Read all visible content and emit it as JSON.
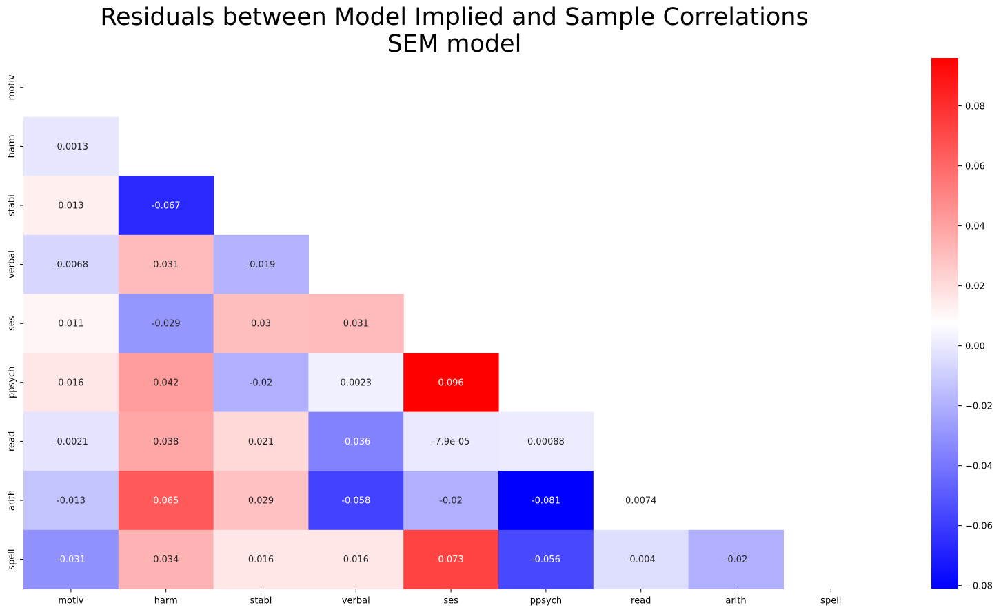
{
  "chart_data": {
    "type": "heatmap",
    "title": [
      "Residuals between Model Implied and Sample Correlations",
      "SEM model"
    ],
    "rows": [
      "motiv",
      "harm",
      "stabi",
      "verbal",
      "ses",
      "ppsych",
      "read",
      "arith",
      "spell"
    ],
    "columns": [
      "motiv",
      "harm",
      "stabi",
      "verbal",
      "ses",
      "ppsych",
      "read",
      "arith",
      "spell"
    ],
    "mask": "upper triangle including diagonal",
    "cells": [
      [],
      [
        {
          "value": -0.0013,
          "label": "-0.0013"
        }
      ],
      [
        {
          "value": 0.013,
          "label": "0.013"
        },
        {
          "value": -0.067,
          "label": "-0.067"
        }
      ],
      [
        {
          "value": -0.0068,
          "label": "-0.0068"
        },
        {
          "value": 0.031,
          "label": "0.031"
        },
        {
          "value": -0.019,
          "label": "-0.019"
        }
      ],
      [
        {
          "value": 0.011,
          "label": "0.011"
        },
        {
          "value": -0.029,
          "label": "-0.029"
        },
        {
          "value": 0.03,
          "label": "0.03"
        },
        {
          "value": 0.031,
          "label": "0.031"
        }
      ],
      [
        {
          "value": 0.016,
          "label": "0.016"
        },
        {
          "value": 0.042,
          "label": "0.042"
        },
        {
          "value": -0.02,
          "label": "-0.02"
        },
        {
          "value": 0.0023,
          "label": "0.0023"
        },
        {
          "value": 0.096,
          "label": "0.096"
        }
      ],
      [
        {
          "value": -0.0021,
          "label": "-0.0021"
        },
        {
          "value": 0.038,
          "label": "0.038"
        },
        {
          "value": 0.021,
          "label": "0.021"
        },
        {
          "value": -0.036,
          "label": "-0.036"
        },
        {
          "value": -7.9e-05,
          "label": "-7.9e-05"
        },
        {
          "value": 0.00088,
          "label": "0.00088"
        }
      ],
      [
        {
          "value": -0.013,
          "label": "-0.013"
        },
        {
          "value": 0.065,
          "label": "0.065"
        },
        {
          "value": 0.029,
          "label": "0.029"
        },
        {
          "value": -0.058,
          "label": "-0.058"
        },
        {
          "value": -0.02,
          "label": "-0.02"
        },
        {
          "value": -0.081,
          "label": "-0.081"
        },
        {
          "value": 0.0074,
          "label": "0.0074"
        }
      ],
      [
        {
          "value": -0.031,
          "label": "-0.031"
        },
        {
          "value": 0.034,
          "label": "0.034"
        },
        {
          "value": 0.016,
          "label": "0.016"
        },
        {
          "value": 0.016,
          "label": "0.016"
        },
        {
          "value": 0.073,
          "label": "0.073"
        },
        {
          "value": -0.056,
          "label": "-0.056"
        },
        {
          "value": -0.004,
          "label": "-0.004"
        },
        {
          "value": -0.02,
          "label": "-0.02"
        }
      ]
    ],
    "colormap": "bwr",
    "colors": {
      "low": "#0000ff",
      "mid": "#ffffff",
      "high": "#ff0000"
    },
    "vmin": -0.081,
    "vmax": 0.096,
    "center": 0.0,
    "colorbar_ticks": [
      0.08,
      0.06,
      0.04,
      0.02,
      0.0,
      -0.02,
      -0.04,
      -0.06,
      -0.08
    ],
    "colorbar_tick_labels": [
      "0.08",
      "0.06",
      "0.04",
      "0.02",
      "0.00",
      "−0.02",
      "−0.04",
      "−0.06",
      "−0.08"
    ],
    "legend": "colorbar right"
  }
}
